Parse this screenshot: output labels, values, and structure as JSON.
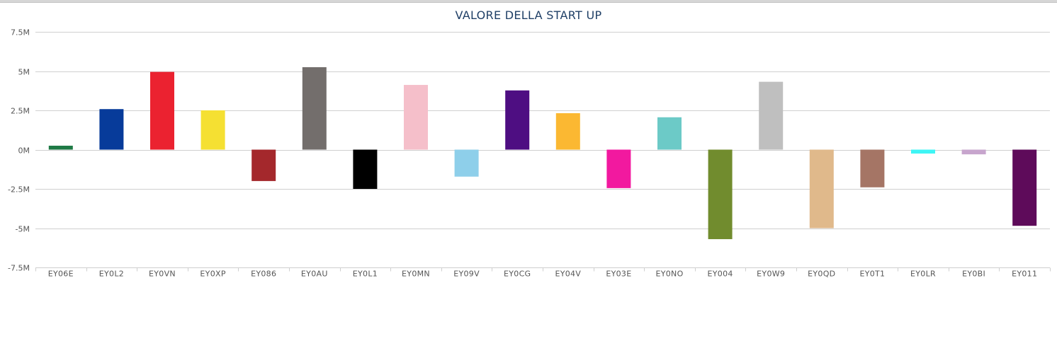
{
  "chart_data": {
    "type": "bar",
    "title": "VALORE DELLA START UP",
    "xlabel": "",
    "ylabel": "",
    "ylim": [
      -7500000,
      7500000
    ],
    "y_ticks": [
      -7500000,
      -5000000,
      -2500000,
      0,
      2500000,
      5000000,
      7500000
    ],
    "y_tick_labels": [
      "-7.5M",
      "-5M",
      "-2.5M",
      "0M",
      "2.5M",
      "5M",
      "7.5M"
    ],
    "grid": true,
    "legend": "none",
    "categories": [
      "EY06E",
      "EY0L2",
      "EY0VN",
      "EY0XP",
      "EY086",
      "EY0AU",
      "EY0L1",
      "EY0MN",
      "EY09V",
      "EY0CG",
      "EY04V",
      "EY03E",
      "EY0NO",
      "EY004",
      "EY0W9",
      "EY0QD",
      "EY0T1",
      "EY0LR",
      "EY0BI",
      "EY011"
    ],
    "values": [
      250000,
      2580000,
      4950000,
      2500000,
      -2000000,
      5250000,
      -2500000,
      4120000,
      -1720000,
      3770000,
      2320000,
      -2450000,
      2060000,
      -5700000,
      4320000,
      -5000000,
      -2400000,
      -250000,
      -300000,
      -4850000
    ],
    "colors": [
      "#1f7a45",
      "#073b9a",
      "#eb2230",
      "#f5e032",
      "#a4282c",
      "#736e6c",
      "#000000",
      "#f5bfca",
      "#8ecfea",
      "#4e0e82",
      "#fbb832",
      "#f2199f",
      "#6ccac7",
      "#718c2e",
      "#bfbfbf",
      "#e0b98b",
      "#a57565",
      "#3ef5f5",
      "#c7a5cd",
      "#5e0b5a"
    ]
  }
}
